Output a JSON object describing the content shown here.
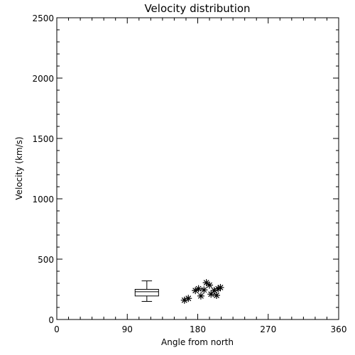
{
  "chart_data": {
    "type": "scatter",
    "title": "Velocity distribution",
    "xlabel": "Angle from north",
    "ylabel": "Velocity (km/s)",
    "xlim": [
      0,
      360
    ],
    "ylim": [
      0,
      2500
    ],
    "xticks": [
      0,
      90,
      180,
      270,
      360
    ],
    "yticks": [
      0,
      500,
      1000,
      1500,
      2000,
      2500
    ],
    "grid": false,
    "series": [
      {
        "marker": "asterisk",
        "points": [
          {
            "x": 163,
            "y": 160
          },
          {
            "x": 168,
            "y": 175
          },
          {
            "x": 177,
            "y": 240
          },
          {
            "x": 181,
            "y": 255
          },
          {
            "x": 184,
            "y": 195
          },
          {
            "x": 188,
            "y": 245
          },
          {
            "x": 191,
            "y": 305
          },
          {
            "x": 195,
            "y": 285
          },
          {
            "x": 197,
            "y": 210
          },
          {
            "x": 201,
            "y": 240
          },
          {
            "x": 204,
            "y": 200
          },
          {
            "x": 206,
            "y": 255
          },
          {
            "x": 209,
            "y": 265
          }
        ]
      }
    ],
    "boxplot": {
      "x_range": [
        100,
        130
      ],
      "min": 150,
      "q1": 195,
      "median": 230,
      "q3": 250,
      "max": 320
    }
  }
}
